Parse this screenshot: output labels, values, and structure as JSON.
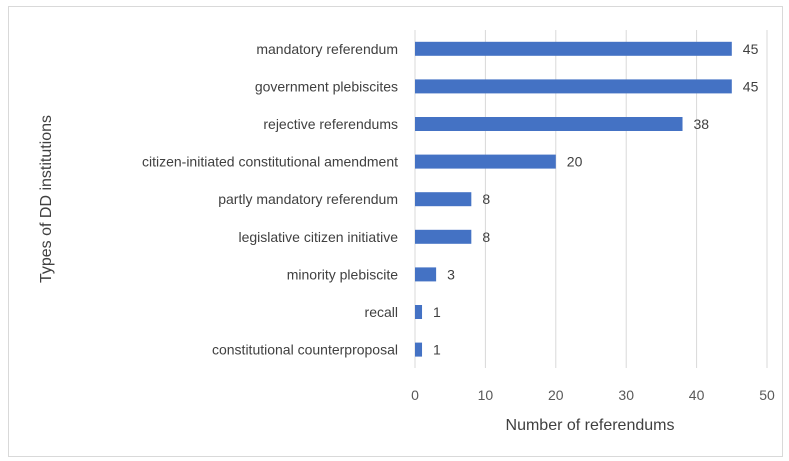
{
  "chart_data": {
    "type": "bar",
    "orientation": "horizontal",
    "categories": [
      "mandatory referendum",
      "government plebiscites",
      "rejective referendums",
      "citizen-initiated constitutional amendment",
      "partly mandatory referendum",
      "legislative citizen initiative",
      "minority plebiscite",
      "recall",
      "constitutional counterproposal"
    ],
    "values": [
      45,
      45,
      38,
      20,
      8,
      8,
      3,
      1,
      1
    ],
    "xlabel": "Number of referendums",
    "ylabel": "Types of DD institutions",
    "xlim": [
      0,
      50
    ],
    "xticks": [
      0,
      10,
      20,
      30,
      40,
      50
    ],
    "grid": "vertical",
    "data_labels": true,
    "bar_color": "#4472c4",
    "grid_color": "#d9d9d9"
  }
}
